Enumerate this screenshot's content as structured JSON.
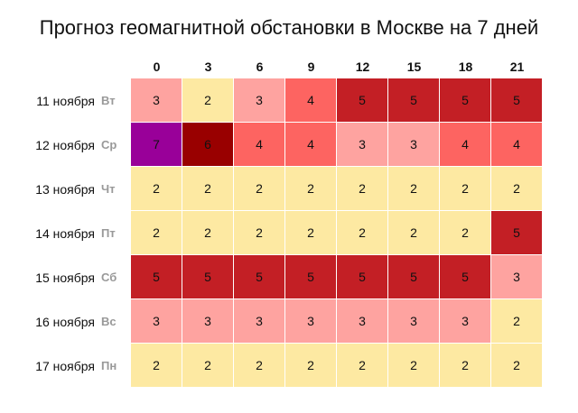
{
  "title": "Прогноз геомагнитной обстановки в Москве на 7 дней",
  "hours": [
    "0",
    "3",
    "6",
    "9",
    "12",
    "15",
    "18",
    "21"
  ],
  "rows": [
    {
      "date": "11 ноября",
      "dow": "Вт",
      "values": [
        3,
        2,
        3,
        4,
        5,
        5,
        5,
        5
      ]
    },
    {
      "date": "12 ноября",
      "dow": "Ср",
      "values": [
        7,
        6,
        4,
        4,
        3,
        3,
        4,
        4
      ]
    },
    {
      "date": "13 ноября",
      "dow": "Чт",
      "values": [
        2,
        2,
        2,
        2,
        2,
        2,
        2,
        2
      ]
    },
    {
      "date": "14 ноября",
      "dow": "Пт",
      "values": [
        2,
        2,
        2,
        2,
        2,
        2,
        2,
        5
      ]
    },
    {
      "date": "15 ноября",
      "dow": "Сб",
      "values": [
        5,
        5,
        5,
        5,
        5,
        5,
        5,
        3
      ]
    },
    {
      "date": "16 ноября",
      "dow": "Вс",
      "values": [
        3,
        3,
        3,
        3,
        3,
        3,
        3,
        2
      ]
    },
    {
      "date": "17 ноября",
      "dow": "Пн",
      "values": [
        2,
        2,
        2,
        2,
        2,
        2,
        2,
        2
      ]
    }
  ],
  "level_colors": {
    "2": "#fde9a2",
    "3": "#fea3a0",
    "4": "#fd6461",
    "5": "#c31f25",
    "6": "#990000",
    "7": "#990099"
  },
  "chart_data": {
    "type": "heatmap",
    "title": "Прогноз геомагнитной обстановки в Москве на 7 дней",
    "x": [
      "0",
      "3",
      "6",
      "9",
      "12",
      "15",
      "18",
      "21"
    ],
    "y": [
      "11 ноября Вт",
      "12 ноября Ср",
      "13 ноября Чт",
      "14 ноября Пт",
      "15 ноября Сб",
      "16 ноября Вс",
      "17 ноября Пн"
    ],
    "values": [
      [
        3,
        2,
        3,
        4,
        5,
        5,
        5,
        5
      ],
      [
        7,
        6,
        4,
        4,
        3,
        3,
        4,
        4
      ],
      [
        2,
        2,
        2,
        2,
        2,
        2,
        2,
        2
      ],
      [
        2,
        2,
        2,
        2,
        2,
        2,
        2,
        5
      ],
      [
        5,
        5,
        5,
        5,
        5,
        5,
        5,
        3
      ],
      [
        3,
        3,
        3,
        3,
        3,
        3,
        3,
        2
      ],
      [
        2,
        2,
        2,
        2,
        2,
        2,
        2,
        2
      ]
    ],
    "xlabel": "",
    "ylabel": ""
  }
}
